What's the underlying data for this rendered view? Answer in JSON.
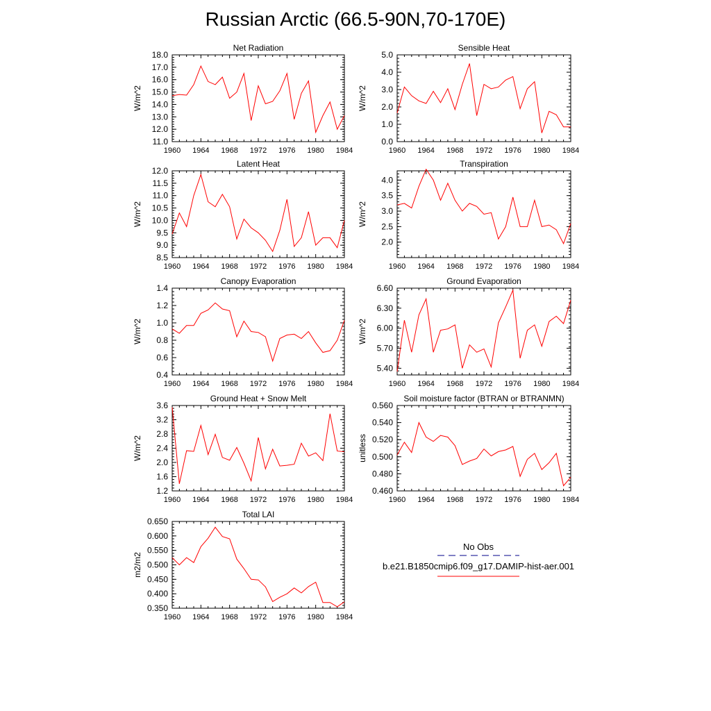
{
  "title": "Russian Arctic (66.5-90N,70-170E)",
  "legend": {
    "obs_label": "No Obs",
    "model_label": "b.e21.B1850cmip6.f09_g17.DAMIP-hist-aer.001",
    "obs_color": "#00008b",
    "model_color": "#ff0000"
  },
  "colors": {
    "series": "#ff0000",
    "axis": "#000000"
  },
  "chart_data": [
    {
      "type": "line",
      "title": "Net Radiation",
      "ylabel": "W/m^2",
      "xlim": [
        1960,
        1984
      ],
      "ylim": [
        11.0,
        18.0
      ],
      "xticks": [
        1960,
        1964,
        1968,
        1972,
        1976,
        1980,
        1984
      ],
      "yticks": [
        11.0,
        12.0,
        13.0,
        14.0,
        15.0,
        16.0,
        17.0,
        18.0
      ],
      "ytick_decimals": 1,
      "x": [
        1960,
        1961,
        1962,
        1963,
        1964,
        1965,
        1966,
        1967,
        1968,
        1969,
        1970,
        1971,
        1972,
        1973,
        1974,
        1975,
        1976,
        1977,
        1978,
        1979,
        1980,
        1981,
        1982,
        1983,
        1984
      ],
      "series": [
        {
          "name": "b.e21.B1850cmip6.f09_g17.DAMIP-hist-aer.001",
          "values": [
            14.7,
            14.8,
            14.75,
            15.6,
            17.1,
            15.85,
            15.6,
            16.2,
            14.5,
            15.0,
            16.5,
            12.7,
            15.5,
            14.05,
            14.25,
            15.1,
            16.5,
            12.8,
            14.9,
            15.9,
            11.75,
            13.1,
            14.2,
            12.0,
            13.1
          ]
        }
      ]
    },
    {
      "type": "line",
      "title": "Sensible Heat",
      "ylabel": "W/m^2",
      "xlim": [
        1960,
        1984
      ],
      "ylim": [
        0.0,
        5.0
      ],
      "xticks": [
        1960,
        1964,
        1968,
        1972,
        1976,
        1980,
        1984
      ],
      "yticks": [
        0.0,
        1.0,
        2.0,
        3.0,
        4.0,
        5.0
      ],
      "ytick_decimals": 1,
      "x": [
        1960,
        1961,
        1962,
        1963,
        1964,
        1965,
        1966,
        1967,
        1968,
        1969,
        1970,
        1971,
        1972,
        1973,
        1974,
        1975,
        1976,
        1977,
        1978,
        1979,
        1980,
        1981,
        1982,
        1983,
        1984
      ],
      "series": [
        {
          "name": "b.e21.B1850cmip6.f09_g17.DAMIP-hist-aer.001",
          "values": [
            1.65,
            3.15,
            2.65,
            2.35,
            2.2,
            2.9,
            2.25,
            3.05,
            1.85,
            3.3,
            4.5,
            1.5,
            3.3,
            3.05,
            3.15,
            3.55,
            3.75,
            1.9,
            3.05,
            3.45,
            0.5,
            1.75,
            1.55,
            0.85,
            0.85
          ]
        }
      ]
    },
    {
      "type": "line",
      "title": "Latent Heat",
      "ylabel": "W/m^2",
      "xlim": [
        1960,
        1984
      ],
      "ylim": [
        8.5,
        12.0
      ],
      "xticks": [
        1960,
        1964,
        1968,
        1972,
        1976,
        1980,
        1984
      ],
      "yticks": [
        8.5,
        9.0,
        9.5,
        10.0,
        10.5,
        11.0,
        11.5,
        12.0
      ],
      "ytick_decimals": 1,
      "x": [
        1960,
        1961,
        1962,
        1963,
        1964,
        1965,
        1966,
        1967,
        1968,
        1969,
        1970,
        1971,
        1972,
        1973,
        1974,
        1975,
        1976,
        1977,
        1978,
        1979,
        1980,
        1981,
        1982,
        1983,
        1984
      ],
      "series": [
        {
          "name": "b.e21.B1850cmip6.f09_g17.DAMIP-hist-aer.001",
          "values": [
            9.45,
            10.3,
            9.75,
            11.0,
            11.85,
            10.75,
            10.55,
            11.05,
            10.55,
            9.25,
            10.05,
            9.7,
            9.5,
            9.2,
            8.75,
            9.6,
            10.85,
            8.95,
            9.3,
            10.35,
            9.0,
            9.3,
            9.3,
            8.9,
            10.0
          ]
        }
      ]
    },
    {
      "type": "line",
      "title": "Transpiration",
      "ylabel": "W/m^2",
      "xlim": [
        1960,
        1984
      ],
      "ylim": [
        1.5,
        4.3
      ],
      "xticks": [
        1960,
        1964,
        1968,
        1972,
        1976,
        1980,
        1984
      ],
      "yticks": [
        2.0,
        2.5,
        3.0,
        3.5,
        4.0
      ],
      "ytick_decimals": 1,
      "x": [
        1960,
        1961,
        1962,
        1963,
        1964,
        1965,
        1966,
        1967,
        1968,
        1969,
        1970,
        1971,
        1972,
        1973,
        1974,
        1975,
        1976,
        1977,
        1978,
        1979,
        1980,
        1981,
        1982,
        1983,
        1984
      ],
      "series": [
        {
          "name": "b.e21.B1850cmip6.f09_g17.DAMIP-hist-aer.001",
          "values": [
            3.2,
            3.25,
            3.1,
            3.8,
            4.35,
            4.0,
            3.35,
            3.9,
            3.35,
            3.0,
            3.25,
            3.15,
            2.9,
            2.95,
            2.1,
            2.5,
            3.45,
            2.5,
            2.5,
            3.35,
            2.5,
            2.55,
            2.4,
            1.95,
            2.6
          ]
        }
      ]
    },
    {
      "type": "line",
      "title": "Canopy Evaporation",
      "ylabel": "W/m^2",
      "xlim": [
        1960,
        1984
      ],
      "ylim": [
        0.4,
        1.4
      ],
      "xticks": [
        1960,
        1964,
        1968,
        1972,
        1976,
        1980,
        1984
      ],
      "yticks": [
        0.4,
        0.6,
        0.8,
        1.0,
        1.2,
        1.4
      ],
      "ytick_decimals": 1,
      "x": [
        1960,
        1961,
        1962,
        1963,
        1964,
        1965,
        1966,
        1967,
        1968,
        1969,
        1970,
        1971,
        1972,
        1973,
        1974,
        1975,
        1976,
        1977,
        1978,
        1979,
        1980,
        1981,
        1982,
        1983,
        1984
      ],
      "series": [
        {
          "name": "b.e21.B1850cmip6.f09_g17.DAMIP-hist-aer.001",
          "values": [
            0.93,
            0.88,
            0.97,
            0.97,
            1.11,
            1.15,
            1.23,
            1.16,
            1.14,
            0.84,
            1.02,
            0.9,
            0.89,
            0.84,
            0.56,
            0.82,
            0.86,
            0.87,
            0.82,
            0.9,
            0.77,
            0.66,
            0.68,
            0.8,
            1.03
          ]
        }
      ]
    },
    {
      "type": "line",
      "title": "Ground Evaporation",
      "ylabel": "W/m^2",
      "xlim": [
        1960,
        1984
      ],
      "ylim": [
        5.3,
        6.6
      ],
      "xticks": [
        1960,
        1964,
        1968,
        1972,
        1976,
        1980,
        1984
      ],
      "yticks": [
        5.4,
        5.7,
        6.0,
        6.3,
        6.6
      ],
      "ytick_decimals": 2,
      "x": [
        1960,
        1961,
        1962,
        1963,
        1964,
        1965,
        1966,
        1967,
        1968,
        1969,
        1970,
        1971,
        1972,
        1973,
        1974,
        1975,
        1976,
        1977,
        1978,
        1979,
        1980,
        1981,
        1982,
        1983,
        1984
      ],
      "series": [
        {
          "name": "b.e21.B1850cmip6.f09_g17.DAMIP-hist-aer.001",
          "values": [
            5.35,
            6.12,
            5.64,
            6.2,
            6.44,
            5.64,
            5.97,
            5.99,
            6.05,
            5.4,
            5.75,
            5.64,
            5.69,
            5.42,
            6.08,
            6.32,
            6.57,
            5.55,
            5.97,
            6.05,
            5.73,
            6.1,
            6.18,
            6.07,
            6.42
          ]
        }
      ]
    },
    {
      "type": "line",
      "title": "Ground Heat + Snow Melt",
      "ylabel": "W/m^2",
      "xlim": [
        1960,
        1984
      ],
      "ylim": [
        1.2,
        3.6
      ],
      "xticks": [
        1960,
        1964,
        1968,
        1972,
        1976,
        1980,
        1984
      ],
      "yticks": [
        1.2,
        1.6,
        2.0,
        2.4,
        2.8,
        3.2,
        3.6
      ],
      "ytick_decimals": 1,
      "x": [
        1960,
        1961,
        1962,
        1963,
        1964,
        1965,
        1966,
        1967,
        1968,
        1969,
        1970,
        1971,
        1972,
        1973,
        1974,
        1975,
        1976,
        1977,
        1978,
        1979,
        1980,
        1981,
        1982,
        1983,
        1984
      ],
      "series": [
        {
          "name": "b.e21.B1850cmip6.f09_g17.DAMIP-hist-aer.001",
          "values": [
            3.55,
            1.4,
            2.33,
            2.31,
            3.04,
            2.22,
            2.79,
            2.14,
            2.06,
            2.42,
            1.98,
            1.48,
            2.7,
            1.82,
            2.37,
            1.9,
            1.92,
            1.95,
            2.54,
            2.18,
            2.27,
            2.05,
            3.37,
            2.32,
            2.3
          ]
        }
      ]
    },
    {
      "type": "line",
      "title": "Soil moisture factor (BTRAN or BTRANMN)",
      "ylabel": "unitless",
      "xlim": [
        1960,
        1984
      ],
      "ylim": [
        0.46,
        0.56
      ],
      "xticks": [
        1960,
        1964,
        1968,
        1972,
        1976,
        1980,
        1984
      ],
      "yticks": [
        0.46,
        0.48,
        0.5,
        0.52,
        0.54,
        0.56
      ],
      "ytick_decimals": 3,
      "x": [
        1960,
        1961,
        1962,
        1963,
        1964,
        1965,
        1966,
        1967,
        1968,
        1969,
        1970,
        1971,
        1972,
        1973,
        1974,
        1975,
        1976,
        1977,
        1978,
        1979,
        1980,
        1981,
        1982,
        1983,
        1984
      ],
      "series": [
        {
          "name": "b.e21.B1850cmip6.f09_g17.DAMIP-hist-aer.001",
          "values": [
            0.502,
            0.517,
            0.505,
            0.54,
            0.523,
            0.518,
            0.525,
            0.523,
            0.513,
            0.491,
            0.495,
            0.498,
            0.509,
            0.501,
            0.506,
            0.508,
            0.512,
            0.477,
            0.497,
            0.504,
            0.485,
            0.493,
            0.504,
            0.466,
            0.476
          ]
        }
      ]
    },
    {
      "type": "line",
      "title": "Total LAI",
      "ylabel": "m2/m2",
      "xlim": [
        1960,
        1984
      ],
      "ylim": [
        0.35,
        0.65
      ],
      "xticks": [
        1960,
        1964,
        1968,
        1972,
        1976,
        1980,
        1984
      ],
      "yticks": [
        0.35,
        0.4,
        0.45,
        0.5,
        0.55,
        0.6,
        0.65
      ],
      "ytick_decimals": 3,
      "x": [
        1960,
        1961,
        1962,
        1963,
        1964,
        1965,
        1966,
        1967,
        1968,
        1969,
        1970,
        1971,
        1972,
        1973,
        1974,
        1975,
        1976,
        1977,
        1978,
        1979,
        1980,
        1981,
        1982,
        1983,
        1984
      ],
      "series": [
        {
          "name": "b.e21.B1850cmip6.f09_g17.DAMIP-hist-aer.001",
          "values": [
            0.525,
            0.5,
            0.525,
            0.508,
            0.563,
            0.592,
            0.63,
            0.598,
            0.59,
            0.52,
            0.487,
            0.45,
            0.448,
            0.424,
            0.373,
            0.388,
            0.4,
            0.42,
            0.403,
            0.425,
            0.44,
            0.37,
            0.37,
            0.355,
            0.372
          ]
        }
      ]
    }
  ]
}
